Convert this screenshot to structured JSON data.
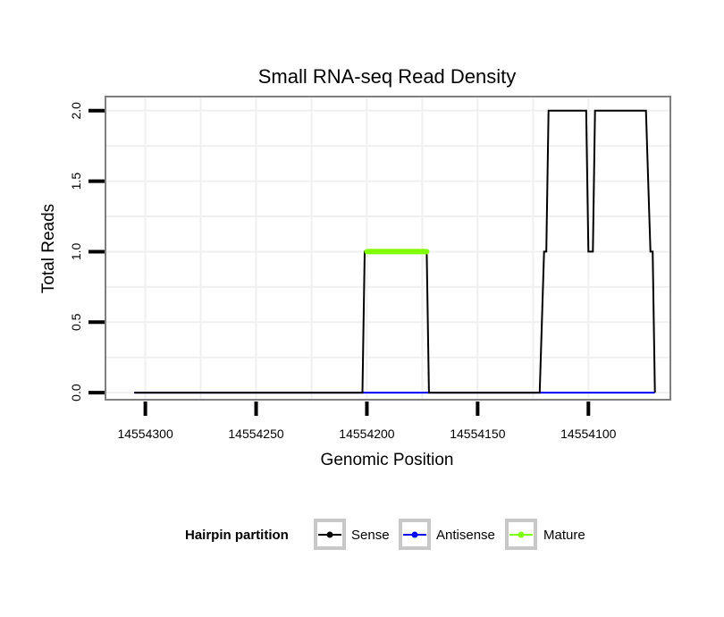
{
  "chart_data": {
    "type": "line",
    "title": "Small RNA-seq Read Density",
    "xlabel": "Genomic Position",
    "ylabel": "Total Reads",
    "x_reversed": true,
    "xlim": [
      14554318,
      14554063
    ],
    "ylim": [
      -0.05,
      2.1
    ],
    "x_ticks": [
      14554300,
      14554250,
      14554200,
      14554150,
      14554100
    ],
    "x_tick_labels": [
      "14554300",
      "14554250",
      "14554200",
      "14554150",
      "14554100"
    ],
    "y_ticks": [
      0,
      0.5,
      1,
      1.5,
      2
    ],
    "y_tick_labels": [
      "0.0",
      "0.5",
      "1.0",
      "1.5",
      "2.0"
    ],
    "grid": true,
    "series": [
      {
        "name": "Antisense",
        "color": "#0000ff",
        "points": [
          [
            14554305,
            0
          ],
          [
            14554070,
            0
          ]
        ]
      },
      {
        "name": "Sense",
        "color": "#000000",
        "points": [
          [
            14554305,
            0
          ],
          [
            14554202,
            0
          ],
          [
            14554201,
            1
          ],
          [
            14554173,
            1
          ],
          [
            14554172,
            0
          ],
          [
            14554122,
            0
          ],
          [
            14554120,
            1
          ],
          [
            14554119,
            1
          ],
          [
            14554118,
            2
          ],
          [
            14554101,
            2
          ],
          [
            14554100,
            1
          ],
          [
            14554098,
            1
          ],
          [
            14554097,
            2
          ],
          [
            14554074,
            2
          ],
          [
            14554072,
            1
          ],
          [
            14554071,
            1
          ],
          [
            14554070,
            0
          ]
        ]
      },
      {
        "name": "Mature",
        "color": "#7fff00",
        "thick": true,
        "points": [
          [
            14554200,
            1
          ],
          [
            14554173,
            1
          ]
        ]
      }
    ],
    "legend": {
      "title": "Hairpin partition",
      "placement": "bottom",
      "entries": [
        {
          "label": "Sense",
          "color": "#000000"
        },
        {
          "label": "Antisense",
          "color": "#0000ff"
        },
        {
          "label": "Mature",
          "color": "#7fff00"
        }
      ]
    }
  }
}
